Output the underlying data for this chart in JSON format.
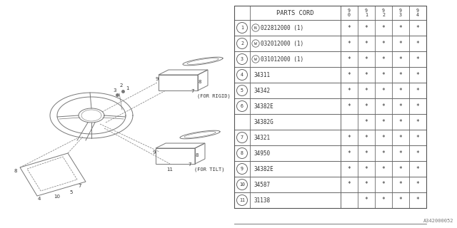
{
  "diagram_code": "A342000052",
  "bg_color": "#ffffff",
  "header_label": "PARTS CORD",
  "yr_labels": [
    "9\n0",
    "9\n1",
    "9\n2",
    "9\n3",
    "9\n4"
  ],
  "rows": [
    {
      "num": "1",
      "circle": true,
      "prefix": "N",
      "prefix_circle": true,
      "part": "022812000 (1)",
      "cols": [
        "*",
        "*",
        "*",
        "*",
        "*"
      ]
    },
    {
      "num": "2",
      "circle": true,
      "prefix": "W",
      "prefix_circle": true,
      "part": "032012000 (1)",
      "cols": [
        "*",
        "*",
        "*",
        "*",
        "*"
      ]
    },
    {
      "num": "3",
      "circle": true,
      "prefix": "W",
      "prefix_circle": true,
      "part": "031012000 (1)",
      "cols": [
        "*",
        "*",
        "*",
        "*",
        "*"
      ]
    },
    {
      "num": "4",
      "circle": true,
      "prefix": "",
      "prefix_circle": false,
      "part": "34311",
      "cols": [
        "*",
        "*",
        "*",
        "*",
        "*"
      ]
    },
    {
      "num": "5",
      "circle": true,
      "prefix": "",
      "prefix_circle": false,
      "part": "34342",
      "cols": [
        "*",
        "*",
        "*",
        "*",
        "*"
      ]
    },
    {
      "num": "6",
      "circle": true,
      "prefix": "",
      "prefix_circle": false,
      "part": "34382E",
      "cols": [
        "*",
        "*",
        "*",
        "*",
        "*"
      ],
      "subrow": "34382G",
      "subcols": [
        "",
        "*",
        "*",
        "*",
        "*"
      ]
    },
    {
      "num": "7",
      "circle": true,
      "prefix": "",
      "prefix_circle": false,
      "part": "34321",
      "cols": [
        "*",
        "*",
        "*",
        "*",
        "*"
      ]
    },
    {
      "num": "8",
      "circle": true,
      "prefix": "",
      "prefix_circle": false,
      "part": "34950",
      "cols": [
        "*",
        "*",
        "*",
        "*",
        "*"
      ]
    },
    {
      "num": "9",
      "circle": true,
      "prefix": "",
      "prefix_circle": false,
      "part": "34382E",
      "cols": [
        "*",
        "*",
        "*",
        "*",
        "*"
      ]
    },
    {
      "num": "10",
      "circle": true,
      "prefix": "",
      "prefix_circle": false,
      "part": "34587",
      "cols": [
        "*",
        "*",
        "*",
        "*",
        "*"
      ]
    },
    {
      "num": "11",
      "circle": true,
      "prefix": "",
      "prefix_circle": false,
      "part": "31138",
      "cols": [
        "",
        "*",
        "*",
        "*",
        "*"
      ]
    }
  ],
  "lc": "#777777",
  "tc": "#333333",
  "fs": 5.8
}
